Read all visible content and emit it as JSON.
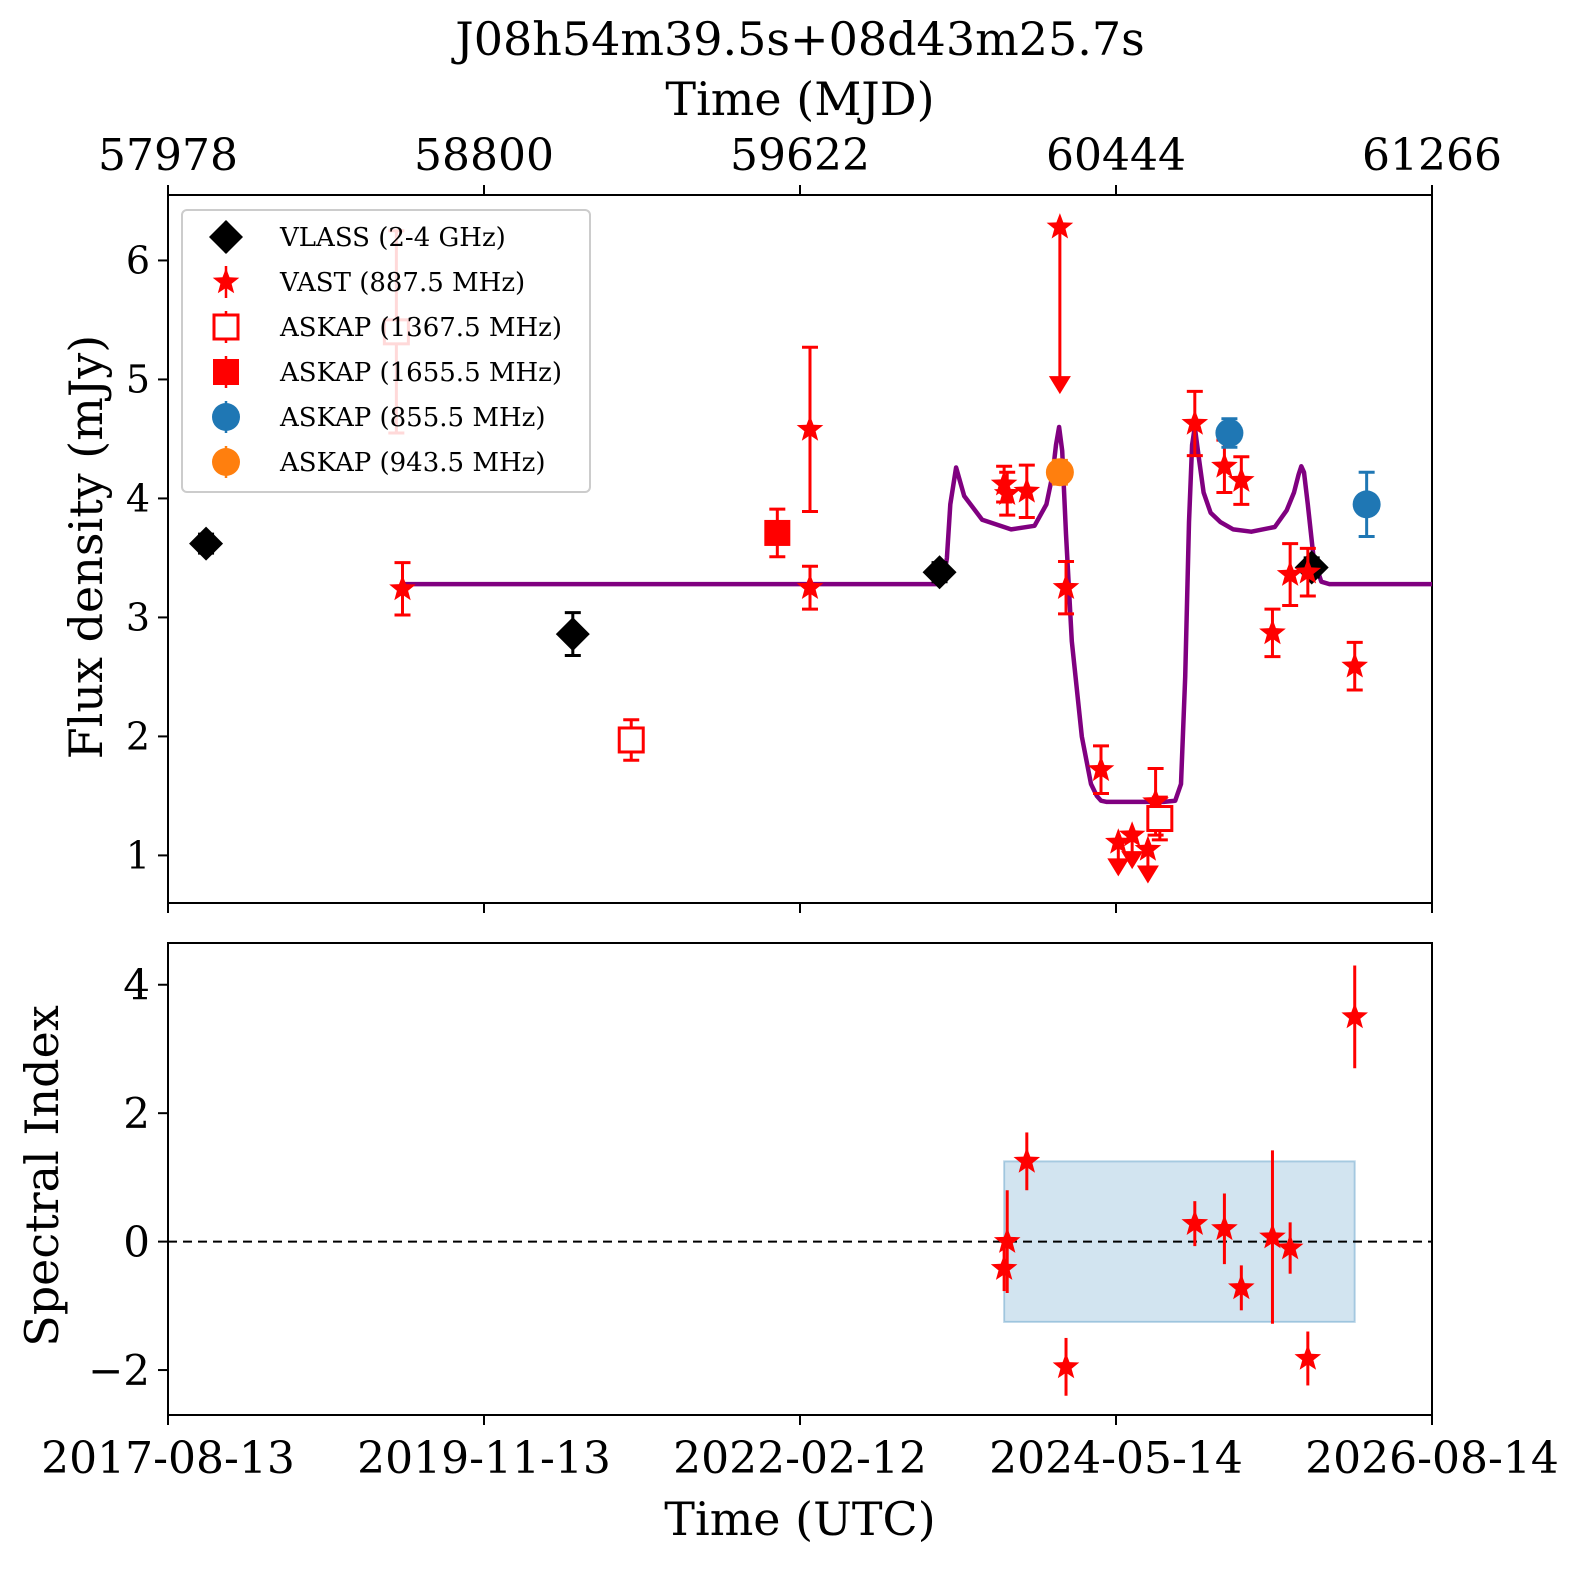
{
  "title": "J08h54m39.5s+08d43m25.7s",
  "colors": {
    "vlass": "#000000",
    "vast": "#ff0000",
    "askap855": "#1f77b4",
    "askap943": "#ff7f0e",
    "model": "#800080",
    "band_fill": "#1f77b4"
  },
  "chart_data": [
    {
      "type": "scatter",
      "panel": "flux",
      "xlabel_top": "Time (MJD)",
      "top_ticks": [
        "57978",
        "58800",
        "59622",
        "60444",
        "61266"
      ],
      "ylabel": "Flux density (mJy)",
      "ylim": [
        0.6,
        6.55
      ],
      "yticks": [
        1,
        2,
        3,
        4,
        5,
        6
      ],
      "xlim": [
        "2017-08-13",
        "2026-08-14"
      ],
      "legend_position": "upper-left",
      "series": [
        {
          "name": "VLASS (2-4 GHz)",
          "marker": "diamond",
          "color": "#000000",
          "points": [
            {
              "x": "2017-11-20",
              "y": 3.62,
              "err": 0.08
            },
            {
              "x": "2020-07-01",
              "y": 2.86,
              "err": 0.18
            },
            {
              "x": "2023-02-10",
              "y": 3.38,
              "err": 0.08
            },
            {
              "x": "2025-10-05",
              "y": 3.42,
              "err": 0.08
            }
          ]
        },
        {
          "name": "VAST (887.5 MHz)",
          "marker": "star",
          "color": "#ff0000",
          "points": [
            {
              "x": "2019-04-15",
              "y": 3.24,
              "err": 0.22
            },
            {
              "x": "2022-03-10",
              "y": 4.58,
              "err": 0.69
            },
            {
              "x": "2022-03-10",
              "y": 3.25,
              "err": 0.18
            },
            {
              "x": "2023-07-28",
              "y": 4.12,
              "err": 0.15
            },
            {
              "x": "2023-08-05",
              "y": 4.04,
              "err": 0.18
            },
            {
              "x": "2023-09-25",
              "y": 4.06,
              "err": 0.22
            },
            {
              "x": "2024-01-05",
              "y": 3.25,
              "err": 0.22
            },
            {
              "x": "2024-04-05",
              "y": 1.72,
              "err": 0.2
            },
            {
              "x": "2024-08-25",
              "y": 1.45,
              "err": 0.28
            },
            {
              "x": "2024-12-05",
              "y": 4.63,
              "err": 0.27
            },
            {
              "x": "2025-02-20",
              "y": 4.27,
              "err": 0.22
            },
            {
              "x": "2025-04-05",
              "y": 4.15,
              "err": 0.2
            },
            {
              "x": "2025-06-25",
              "y": 2.87,
              "err": 0.2
            },
            {
              "x": "2025-08-10",
              "y": 3.36,
              "err": 0.26
            },
            {
              "x": "2025-09-25",
              "y": 3.38,
              "err": 0.2
            },
            {
              "x": "2026-01-25",
              "y": 2.59,
              "err": 0.2
            }
          ],
          "upper_limits": [
            {
              "x": "2024-05-20",
              "y": 1.11
            },
            {
              "x": "2024-06-25",
              "y": 1.17
            },
            {
              "x": "2024-08-05",
              "y": 1.05
            },
            {
              "x": "2023-12-20",
              "y": 6.28
            }
          ]
        },
        {
          "name": "ASKAP (1367.5 MHz)",
          "marker": "open-square",
          "color": "#ff0000",
          "points": [
            {
              "x": "2020-11-30",
              "y": 1.97,
              "err": 0.17
            },
            {
              "x": "2024-09-05",
              "y": 1.31,
              "err": 0.18
            },
            {
              "x": "2019-03-30",
              "y": 5.4,
              "err": 0.85
            }
          ]
        },
        {
          "name": "ASKAP (1655.5 MHz)",
          "marker": "square",
          "color": "#ff0000",
          "points": [
            {
              "x": "2021-12-15",
              "y": 3.71,
              "err": 0.2
            }
          ]
        },
        {
          "name": "ASKAP (855.5 MHz)",
          "marker": "circle",
          "color": "#1f77b4",
          "points": [
            {
              "x": "2025-03-05",
              "y": 4.55,
              "err": 0.12
            },
            {
              "x": "2026-02-25",
              "y": 3.95,
              "err": 0.27
            }
          ]
        },
        {
          "name": "ASKAP (943.5 MHz)",
          "marker": "circle",
          "color": "#ff7f0e",
          "points": [
            {
              "x": "2023-12-20",
              "y": 4.22,
              "err": 0.1
            }
          ]
        }
      ],
      "model_curve": {
        "color": "#800080",
        "x": [
          "2019-04-15",
          "2022-03-10",
          "2023-02-05",
          "2023-02-20",
          "2023-03-01",
          "2023-03-10",
          "2023-03-25",
          "2023-04-15",
          "2023-06-01",
          "2023-08-15",
          "2023-10-15",
          "2023-11-15",
          "2023-12-01",
          "2023-12-10",
          "2023-12-18",
          "2023-12-26",
          "2024-01-05",
          "2024-01-20",
          "2024-02-15",
          "2024-03-10",
          "2024-03-25",
          "2024-04-05",
          "2024-04-20",
          "2024-06-01",
          "2024-08-01",
          "2024-09-15",
          "2024-10-15",
          "2024-10-30",
          "2024-11-10",
          "2024-11-20",
          "2024-11-28",
          "2024-12-05",
          "2024-12-15",
          "2024-12-28",
          "2025-01-15",
          "2025-02-10",
          "2025-03-15",
          "2025-05-01",
          "2025-07-01",
          "2025-08-01",
          "2025-08-20",
          "2025-09-01",
          "2025-09-08",
          "2025-09-15",
          "2025-09-25",
          "2025-10-10",
          "2025-10-30",
          "2025-11-20",
          "2026-08-14"
        ],
        "y": [
          3.28,
          3.28,
          3.28,
          3.3,
          3.5,
          3.95,
          4.26,
          4.02,
          3.82,
          3.74,
          3.77,
          3.95,
          4.2,
          4.45,
          4.6,
          4.4,
          3.7,
          2.8,
          2.0,
          1.6,
          1.5,
          1.46,
          1.45,
          1.45,
          1.45,
          1.45,
          1.46,
          1.6,
          2.5,
          3.8,
          4.45,
          4.6,
          4.35,
          4.05,
          3.88,
          3.8,
          3.74,
          3.72,
          3.76,
          3.9,
          4.05,
          4.2,
          4.27,
          4.22,
          3.95,
          3.5,
          3.3,
          3.28,
          3.28
        ]
      }
    },
    {
      "type": "scatter",
      "panel": "spectral_index",
      "ylabel": "Spectral Index",
      "xlabel": "Time (UTC)",
      "bottom_ticks": [
        "2017-08-13",
        "2019-11-13",
        "2022-02-12",
        "2024-05-14",
        "2026-08-14"
      ],
      "ylim": [
        -2.7,
        4.65
      ],
      "yticks": [
        -2,
        0,
        2,
        4
      ],
      "reference_line": 0,
      "band": {
        "x_start": "2023-07-28",
        "x_end": "2026-01-25",
        "y_low": -1.25,
        "y_high": 1.25
      },
      "series": [
        {
          "name": "",
          "marker": "star",
          "color": "#ff0000",
          "points": [
            {
              "x": "2023-07-28",
              "y": -0.42,
              "err": 0.35
            },
            {
              "x": "2023-08-05",
              "y": 0.0,
              "err": 0.8
            },
            {
              "x": "2023-09-25",
              "y": 1.25,
              "err": 0.45
            },
            {
              "x": "2024-01-05",
              "y": -1.95,
              "err": 0.45
            },
            {
              "x": "2024-12-05",
              "y": 0.28,
              "err": 0.35
            },
            {
              "x": "2025-02-20",
              "y": 0.2,
              "err": 0.55
            },
            {
              "x": "2025-04-05",
              "y": -0.72,
              "err": 0.35
            },
            {
              "x": "2025-06-25",
              "y": 0.07,
              "err": 1.35
            },
            {
              "x": "2025-08-10",
              "y": -0.1,
              "err": 0.4
            },
            {
              "x": "2025-09-25",
              "y": -1.82,
              "err": 0.42
            },
            {
              "x": "2026-01-25",
              "y": 3.5,
              "err": 0.8
            }
          ]
        }
      ]
    }
  ]
}
